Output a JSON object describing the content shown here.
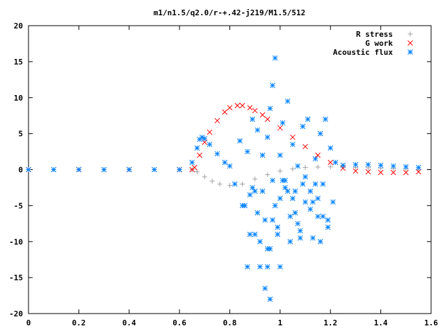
{
  "chart_data": {
    "type": "scatter",
    "title": "m1/n1.5/q2.0/r-+.42-j219/M1.5/512",
    "xlabel": "",
    "ylabel": "",
    "xlim": [
      0,
      1.6
    ],
    "ylim": [
      -20,
      20
    ],
    "x_ticks": [
      "0",
      "0.2",
      "0.4",
      "0.6",
      "0.8",
      "1",
      "1.2",
      "1.4",
      "1.6"
    ],
    "y_ticks": [
      "20",
      "15",
      "10",
      "5",
      "0",
      "-5",
      "-10",
      "-15",
      "-20"
    ],
    "x_tick_values": [
      0,
      0.2,
      0.4,
      0.6,
      0.8,
      1.0,
      1.2,
      1.4,
      1.6
    ],
    "y_tick_values": [
      20,
      15,
      10,
      5,
      0,
      -5,
      -10,
      -15,
      -20
    ],
    "grid": false,
    "legend_position": "top-right",
    "series": [
      {
        "name": "R stress",
        "marker": "plus",
        "color": "#a0a0a0",
        "x": [
          0.0,
          0.1,
          0.2,
          0.3,
          0.4,
          0.5,
          0.6,
          0.65,
          0.67,
          0.7,
          0.73,
          0.76,
          0.8,
          0.85,
          0.9,
          0.95,
          1.0,
          1.05,
          1.1,
          1.15,
          1.2,
          1.25,
          1.3,
          1.35,
          1.4,
          1.45,
          1.5,
          1.55
        ],
        "y": [
          0,
          0,
          0,
          0,
          0,
          0,
          0,
          0,
          -0.3,
          -1.0,
          -1.6,
          -2.0,
          -2.2,
          -2.0,
          -1.3,
          -0.7,
          -0.2,
          0.1,
          0.3,
          0.35,
          0.4,
          0.35,
          0.3,
          0.25,
          0.2,
          0.15,
          0.1,
          0.05
        ]
      },
      {
        "name": "G work",
        "marker": "cross",
        "color": "#ff0000",
        "x": [
          0.0,
          0.2,
          0.4,
          0.6,
          0.65,
          0.66,
          0.68,
          0.7,
          0.72,
          0.75,
          0.78,
          0.8,
          0.83,
          0.85,
          0.88,
          0.9,
          0.93,
          0.95,
          1.0,
          1.05,
          1.1,
          1.15,
          1.2,
          1.25,
          1.3,
          1.35,
          1.4,
          1.45,
          1.5,
          1.55
        ],
        "y": [
          0,
          0,
          0,
          0,
          0,
          0.3,
          2.0,
          3.8,
          5.2,
          6.8,
          8.0,
          8.6,
          8.9,
          8.9,
          8.6,
          8.2,
          7.6,
          7.0,
          5.8,
          4.5,
          3.2,
          2.0,
          1.0,
          0.2,
          -0.2,
          -0.3,
          -0.4,
          -0.4,
          -0.4,
          -0.3
        ]
      },
      {
        "name": "Acoustic flux",
        "marker": "star",
        "color": "#0080ff",
        "x": [
          0.0,
          0.1,
          0.2,
          0.3,
          0.4,
          0.5,
          0.6,
          0.65,
          0.67,
          0.68,
          0.69,
          0.7,
          0.72,
          0.75,
          0.78,
          0.8,
          1.25,
          1.3,
          1.35,
          1.4,
          1.45,
          1.5,
          1.55,
          0.82,
          0.84,
          0.86,
          0.87,
          0.88,
          0.89,
          0.9,
          0.91,
          0.92,
          0.93,
          0.94,
          0.95,
          0.95,
          0.96,
          0.97,
          0.97,
          0.98,
          0.99,
          1.0,
          1.0,
          1.01,
          1.02,
          1.03,
          1.04,
          1.05,
          1.06,
          1.07,
          1.08,
          1.09,
          1.1,
          1.11,
          1.12,
          1.13,
          1.14,
          1.15,
          1.16,
          1.17,
          1.18,
          1.19,
          1.2,
          1.21,
          1.22,
          0.96,
          0.95,
          0.9,
          0.87,
          0.92,
          0.94,
          0.96,
          0.98,
          1.0,
          1.02,
          1.04,
          1.06,
          1.08,
          1.1,
          1.12,
          1.14,
          1.16,
          0.88,
          0.91,
          0.97,
          0.99,
          1.03,
          1.07,
          1.13,
          1.17,
          0.85,
          0.89,
          0.93,
          1.01,
          1.05,
          1.09,
          1.15,
          1.19
        ],
        "y": [
          0,
          0,
          0,
          0,
          0,
          0,
          0,
          1.0,
          3.0,
          4.2,
          4.5,
          4.3,
          3.5,
          2.2,
          1.0,
          0.5,
          0.6,
          0.7,
          0.7,
          0.6,
          0.5,
          0.4,
          0.3,
          -2.0,
          4.0,
          -5.0,
          2.5,
          -9.0,
          7.0,
          -3.0,
          5.5,
          -13.5,
          2.0,
          -16.5,
          4.5,
          -11.0,
          8.5,
          -7.0,
          11.7,
          15.5,
          -8.0,
          -4.0,
          2.0,
          6.5,
          -2.5,
          9.5,
          -10.0,
          3.5,
          -6.0,
          0.5,
          -8.5,
          6.0,
          -4.5,
          7.0,
          -3.0,
          -9.5,
          1.5,
          -6.5,
          5.0,
          -2.0,
          7.0,
          -7.0,
          3.0,
          -4.5,
          1.0,
          -18.0,
          -13.5,
          -9.0,
          -13.5,
          -10.0,
          -7.0,
          -11.0,
          -5.0,
          -13.5,
          -1.5,
          -6.5,
          -3.0,
          -9.5,
          -1.0,
          -5.5,
          -2.0,
          -10.0,
          -3.5,
          -6.0,
          -1.5,
          -9.0,
          -3.0,
          -7.5,
          -4.5,
          -6.5,
          -5.0,
          -2.5,
          -3.0,
          -1.5,
          -4.0,
          -2.0,
          -4.0,
          -8.0
        ]
      }
    ]
  }
}
